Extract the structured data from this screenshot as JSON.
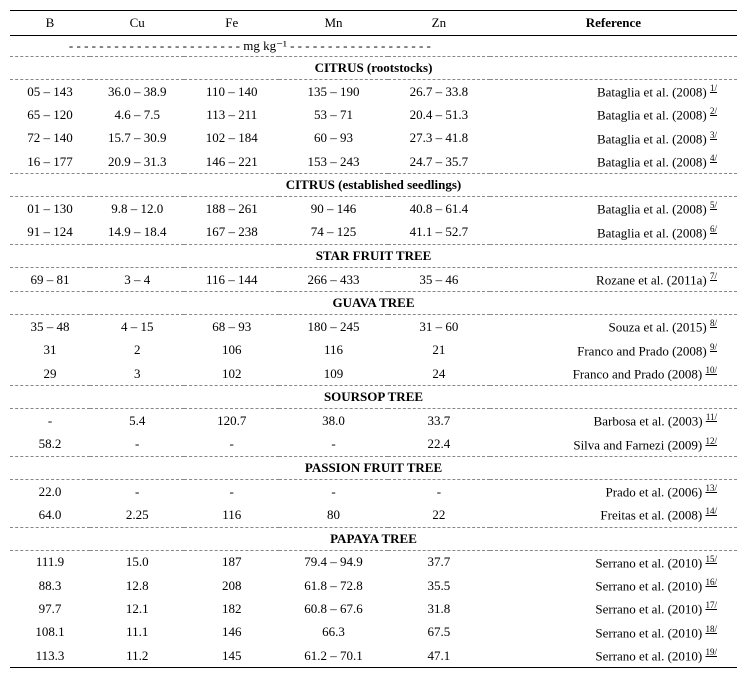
{
  "headers": {
    "b": "B",
    "cu": "Cu",
    "fe": "Fe",
    "mn": "Mn",
    "zn": "Zn",
    "ref": "Reference"
  },
  "unit_line": "- - - - - - - - - - - - - - - - - - - - - - - mg kg⁻¹  - - - - - - - - - - - - - - - - - - -",
  "sections": [
    {
      "title": "CITRUS (rootstocks)",
      "rows": [
        {
          "b": "05 – 143",
          "cu": "36.0 – 38.9",
          "fe": "110 – 140",
          "mn": "135 – 190",
          "zn": "26.7 – 33.8",
          "ref": "Bataglia et al. (2008)",
          "note": "1/"
        },
        {
          "b": "65 – 120",
          "cu": "4.6 – 7.5",
          "fe": "113 – 211",
          "mn": "53 – 71",
          "zn": "20.4 – 51.3",
          "ref": "Bataglia et al. (2008)",
          "note": "2/"
        },
        {
          "b": "72 – 140",
          "cu": "15.7 – 30.9",
          "fe": "102 – 184",
          "mn": "60 – 93",
          "zn": "27.3 – 41.8",
          "ref": "Bataglia et al. (2008)",
          "note": "3/"
        },
        {
          "b": "16 – 177",
          "cu": "20.9 – 31.3",
          "fe": "146 – 221",
          "mn": "153 – 243",
          "zn": "24.7 – 35.7",
          "ref": "Bataglia et al. (2008)",
          "note": "4/"
        }
      ]
    },
    {
      "title": "CITRUS (established seedlings)",
      "rows": [
        {
          "b": "01 – 130",
          "cu": "9.8 – 12.0",
          "fe": "188 – 261",
          "mn": "90 – 146",
          "zn": "40.8 – 61.4",
          "ref": "Bataglia et al. (2008)",
          "note": "5/"
        },
        {
          "b": "91 – 124",
          "cu": "14.9 – 18.4",
          "fe": "167 – 238",
          "mn": "74 – 125",
          "zn": "41.1 – 52.7",
          "ref": "Bataglia et al. (2008)",
          "note": "6/"
        }
      ]
    },
    {
      "title": "STAR FRUIT TREE",
      "rows": [
        {
          "b": "69 – 81",
          "cu": "3 – 4",
          "fe": "116 – 144",
          "mn": "266 – 433",
          "zn": "35 – 46",
          "ref": "Rozane et al. (2011a)",
          "note": "7/"
        }
      ]
    },
    {
      "title": "GUAVA TREE",
      "rows": [
        {
          "b": "35 – 48",
          "cu": "4 – 15",
          "fe": "68 – 93",
          "mn": "180 – 245",
          "zn": "31 – 60",
          "ref": "Souza et al. (2015)",
          "note": "8/"
        },
        {
          "b": "31",
          "cu": "2",
          "fe": "106",
          "mn": "116",
          "zn": "21",
          "ref": "Franco and Prado (2008)",
          "note": "9/"
        },
        {
          "b": "29",
          "cu": "3",
          "fe": "102",
          "mn": "109",
          "zn": "24",
          "ref": "Franco and Prado (2008)",
          "note": "10/"
        }
      ]
    },
    {
      "title": "SOURSOP TREE",
      "rows": [
        {
          "b": "-",
          "cu": "5.4",
          "fe": "120.7",
          "mn": "38.0",
          "zn": "33.7",
          "ref": "Barbosa et al. (2003)",
          "note": "11/"
        },
        {
          "b": "58.2",
          "cu": "-",
          "fe": "-",
          "mn": "-",
          "zn": "22.4",
          "ref": "Silva and Farnezi (2009)",
          "note": "12/"
        }
      ]
    },
    {
      "title": "PASSION FRUIT TREE",
      "rows": [
        {
          "b": "22.0",
          "cu": "-",
          "fe": "-",
          "mn": "-",
          "zn": "-",
          "ref": "Prado et al. (2006)",
          "note": "13/"
        },
        {
          "b": "64.0",
          "cu": "2.25",
          "fe": "116",
          "mn": "80",
          "zn": "22",
          "ref": "Freitas et al. (2008)",
          "note": "14/"
        }
      ]
    },
    {
      "title": "PAPAYA TREE",
      "rows": [
        {
          "b": "111.9",
          "cu": "15.0",
          "fe": "187",
          "mn": "79.4 – 94.9",
          "zn": "37.7",
          "ref": "Serrano et al. (2010)",
          "note": "15/"
        },
        {
          "b": "88.3",
          "cu": "12.8",
          "fe": "208",
          "mn": "61.8 – 72.8",
          "zn": "35.5",
          "ref": "Serrano et al. (2010)",
          "note": "16/"
        },
        {
          "b": "97.7",
          "cu": "12.1",
          "fe": "182",
          "mn": "60.8 – 67.6",
          "zn": "31.8",
          "ref": "Serrano et al. (2010)",
          "note": "17/"
        },
        {
          "b": "108.1",
          "cu": "11.1",
          "fe": "146",
          "mn": "66.3",
          "zn": "67.5",
          "ref": "Serrano et al. (2010)",
          "note": "18/"
        },
        {
          "b": "113.3",
          "cu": "11.2",
          "fe": "145",
          "mn": "61.2 – 70.1",
          "zn": "47.1",
          "ref": "Serrano et al. (2010)",
          "note": "19/"
        }
      ]
    }
  ],
  "col_widths": {
    "b": "11%",
    "cu": "13%",
    "fe": "13%",
    "mn": "15%",
    "zn": "14%",
    "ref": "34%"
  }
}
